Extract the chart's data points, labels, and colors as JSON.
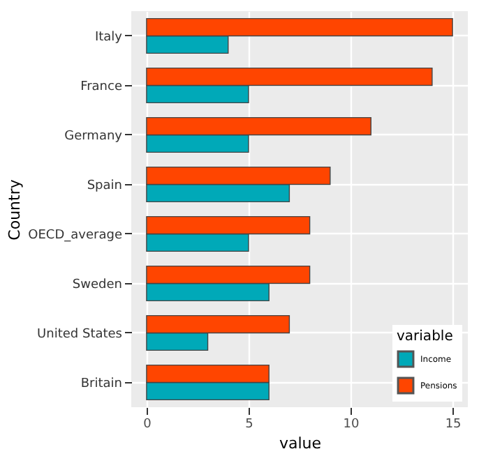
{
  "chart_data": {
    "type": "bar",
    "orientation": "horizontal",
    "xlabel": "value",
    "ylabel": "Country",
    "legend_title": "variable",
    "categories": [
      "Italy",
      "France",
      "Germany",
      "Spain",
      "OECD_average",
      "Sweden",
      "United States",
      "Britain"
    ],
    "series": [
      {
        "name": "Income",
        "color": "#00a9b8",
        "values": [
          4,
          5,
          5,
          7,
          5,
          6,
          3,
          6
        ]
      },
      {
        "name": "Pensions",
        "color": "#ff4500",
        "values": [
          15,
          14,
          11,
          9,
          8,
          8,
          7,
          6
        ]
      }
    ],
    "xlim": [
      -0.75,
      15.75
    ],
    "xticks": [
      0,
      5,
      10,
      15
    ],
    "grid": true,
    "legend": "bottom right"
  }
}
